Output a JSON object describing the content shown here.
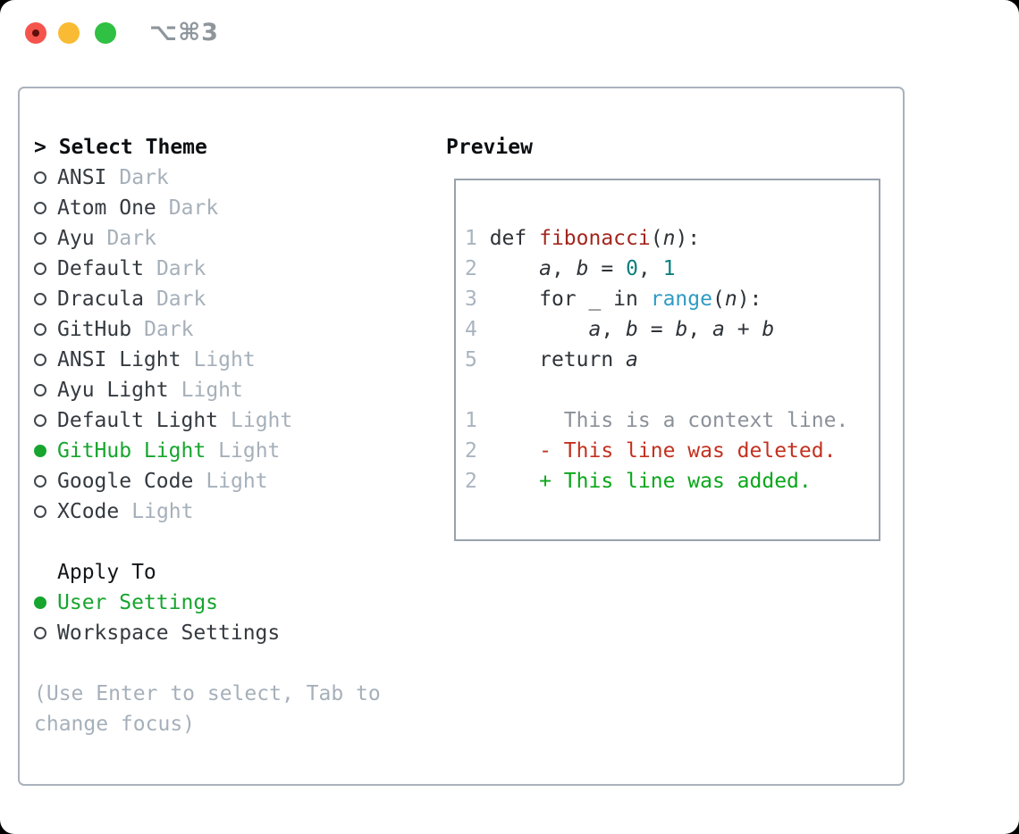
{
  "window": {
    "shortcut_label": "⌥⌘3",
    "traffic_lights": [
      "close",
      "minimize",
      "zoom"
    ]
  },
  "colors": {
    "accent_green": "#17a52e",
    "added_green": "#0aa71b",
    "deleted_red": "#c3311f",
    "function_red": "#a3261e",
    "builtin_blue": "#2e9bc4",
    "number_teal": "#0d7f7d",
    "muted_gray": "#a6b0ba",
    "panel_border": "#a9b2bc"
  },
  "theme_picker": {
    "header": "> Select Theme",
    "items": [
      {
        "name": "ANSI",
        "variant": "Dark",
        "selected": false
      },
      {
        "name": "Atom One",
        "variant": "Dark",
        "selected": false
      },
      {
        "name": "Ayu",
        "variant": "Dark",
        "selected": false
      },
      {
        "name": "Default",
        "variant": "Dark",
        "selected": false
      },
      {
        "name": "Dracula",
        "variant": "Dark",
        "selected": false
      },
      {
        "name": "GitHub",
        "variant": "Dark",
        "selected": false
      },
      {
        "name": "ANSI Light",
        "variant": "Light",
        "selected": false
      },
      {
        "name": "Ayu Light",
        "variant": "Light",
        "selected": false
      },
      {
        "name": "Default Light",
        "variant": "Light",
        "selected": false
      },
      {
        "name": "GitHub Light",
        "variant": "Light",
        "selected": true
      },
      {
        "name": "Google Code",
        "variant": "Light",
        "selected": false
      },
      {
        "name": "XCode",
        "variant": "Light",
        "selected": false
      }
    ],
    "apply_to": {
      "header": "Apply To",
      "options": [
        {
          "name": "User Settings",
          "selected": true
        },
        {
          "name": "Workspace Settings",
          "selected": false
        }
      ]
    },
    "hint_lines": [
      "(Use Enter to select, Tab to",
      "change focus)"
    ]
  },
  "preview": {
    "header": "Preview",
    "lines": [
      {
        "num": "1",
        "segments": [
          [
            "def ",
            "plain"
          ],
          [
            "fibonacci",
            "func"
          ],
          [
            "(",
            "plain"
          ],
          [
            "n",
            "var"
          ],
          [
            "):",
            "plain"
          ]
        ]
      },
      {
        "num": "2",
        "segments": [
          [
            "    ",
            "plain"
          ],
          [
            "a",
            "var"
          ],
          [
            ", ",
            "plain"
          ],
          [
            "b",
            "var"
          ],
          [
            " = ",
            "plain"
          ],
          [
            "0",
            "num"
          ],
          [
            ", ",
            "plain"
          ],
          [
            "1",
            "num"
          ]
        ]
      },
      {
        "num": "3",
        "segments": [
          [
            "    for _ in ",
            "plain"
          ],
          [
            "range",
            "builtin"
          ],
          [
            "(",
            "plain"
          ],
          [
            "n",
            "var"
          ],
          [
            "):",
            "plain"
          ]
        ]
      },
      {
        "num": "4",
        "segments": [
          [
            "        ",
            "plain"
          ],
          [
            "a",
            "var"
          ],
          [
            ", ",
            "plain"
          ],
          [
            "b",
            "var"
          ],
          [
            " = ",
            "plain"
          ],
          [
            "b",
            "var"
          ],
          [
            ", ",
            "plain"
          ],
          [
            "a",
            "var"
          ],
          [
            " + ",
            "plain"
          ],
          [
            "b",
            "var"
          ]
        ]
      },
      {
        "num": "5",
        "segments": [
          [
            "    return ",
            "plain"
          ],
          [
            "a",
            "var"
          ]
        ]
      },
      {
        "num": "",
        "segments": []
      },
      {
        "num": "1",
        "segments": [
          [
            "      This is a context line.",
            "ctx"
          ]
        ]
      },
      {
        "num": "2",
        "segments": [
          [
            "    - This line was deleted.",
            "del"
          ]
        ]
      },
      {
        "num": "2",
        "segments": [
          [
            "    + This line was added.",
            "add"
          ]
        ]
      }
    ]
  }
}
